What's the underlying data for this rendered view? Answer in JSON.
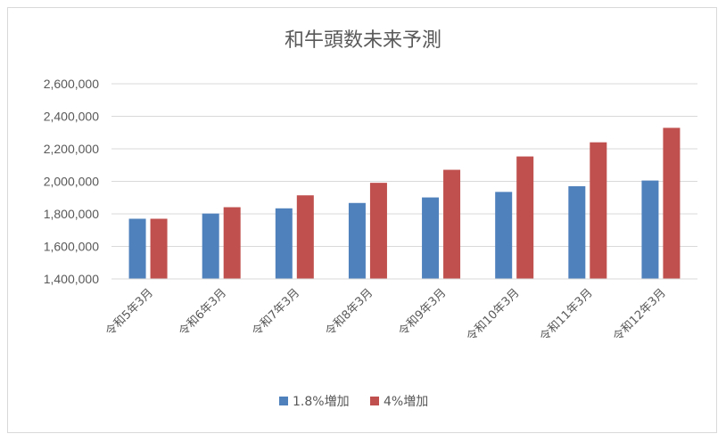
{
  "chart_data": {
    "type": "bar",
    "title": "和牛頭数未来予測",
    "categories": [
      "令和5年3月",
      "令和6年3月",
      "令和7年3月",
      "令和8年3月",
      "令和9年3月",
      "令和10年3月",
      "令和11年3月",
      "令和12年3月"
    ],
    "series": [
      {
        "name": "1.8%増加",
        "color": "#4f81bd",
        "values": [
          1770000,
          1802000,
          1834000,
          1867000,
          1901000,
          1935000,
          1970000,
          2005000
        ]
      },
      {
        "name": "4%増加",
        "color": "#c0504d",
        "values": [
          1770000,
          1841000,
          1914000,
          1991000,
          2071000,
          2153000,
          2240000,
          2329000
        ]
      }
    ],
    "ylim": [
      1400000,
      2600000
    ],
    "yticks": [
      "1,400,000",
      "1,600,000",
      "1,800,000",
      "2,000,000",
      "2,200,000",
      "2,400,000",
      "2,600,000"
    ],
    "grid": true,
    "legend": "bottom"
  }
}
